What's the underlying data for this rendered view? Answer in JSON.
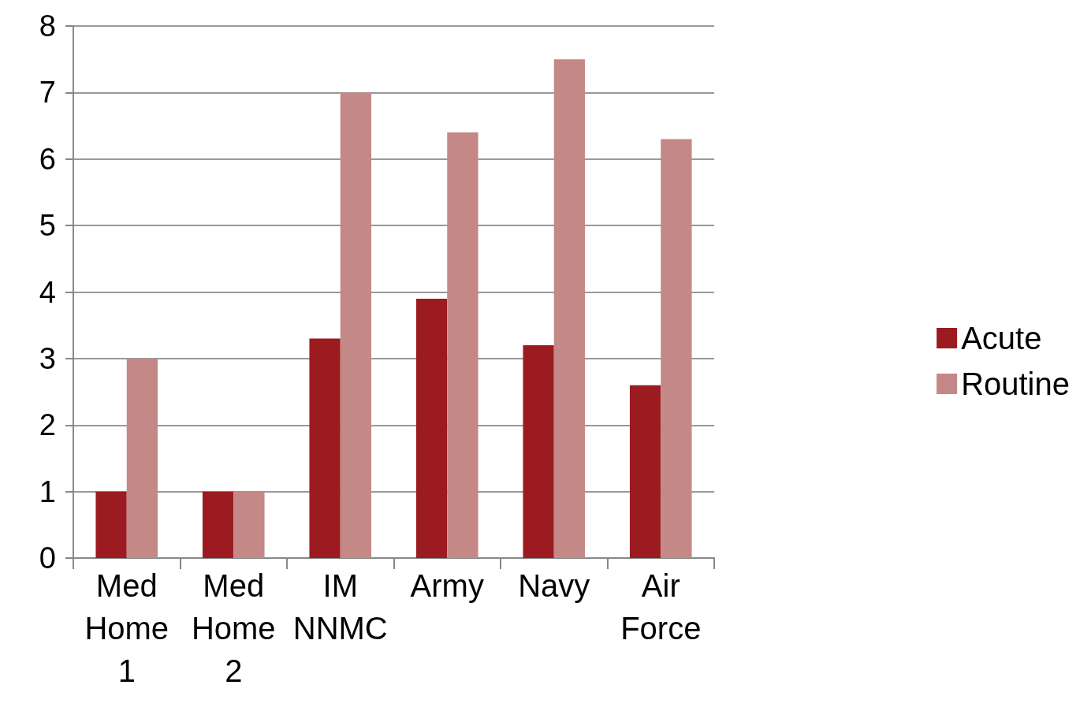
{
  "chart_data": {
    "type": "bar",
    "categories": [
      "Med Home 1",
      "Med Home 2",
      "IM NNMC",
      "Army",
      "Navy",
      "Air Force"
    ],
    "series": [
      {
        "name": "Acute",
        "color": "#9b1b20",
        "values": [
          1,
          1,
          3.3,
          3.9,
          3.2,
          2.6
        ]
      },
      {
        "name": "Routine",
        "color": "#c48886",
        "values": [
          3,
          1,
          7,
          6.4,
          7.5,
          6.3
        ]
      }
    ],
    "ylim": [
      0,
      8
    ],
    "yticks": [
      0,
      1,
      2,
      3,
      4,
      5,
      6,
      7,
      8
    ],
    "grid": "y",
    "legend": "right"
  }
}
